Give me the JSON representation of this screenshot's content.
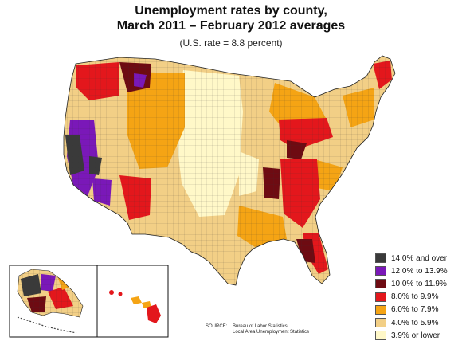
{
  "title": {
    "line1": "Unemployment rates by county,",
    "line2": "March 2011 – February 2012 averages"
  },
  "subtitle": "(U.S. rate = 8.8 percent)",
  "legend": [
    {
      "label": "14.0% and over",
      "color": "#3a3a3a"
    },
    {
      "label": "12.0% to 13.9%",
      "color": "#7a18b8"
    },
    {
      "label": "10.0% to 11.9%",
      "color": "#6e0b12"
    },
    {
      "label": "8.0% to 9.9%",
      "color": "#e3171c"
    },
    {
      "label": "6.0% to 7.9%",
      "color": "#f5a414"
    },
    {
      "label": "4.0% to 5.9%",
      "color": "#f2cf86"
    },
    {
      "label": "3.9% or lower",
      "color": "#fff8c8"
    }
  ],
  "source": {
    "label": "SOURCE:",
    "line1": "Bureau of Labor Statistics",
    "line2": "Local Area Unemployment Statistics"
  },
  "regions": [
    "Alaska",
    "Hawaii",
    "Contiguous United States"
  ]
}
